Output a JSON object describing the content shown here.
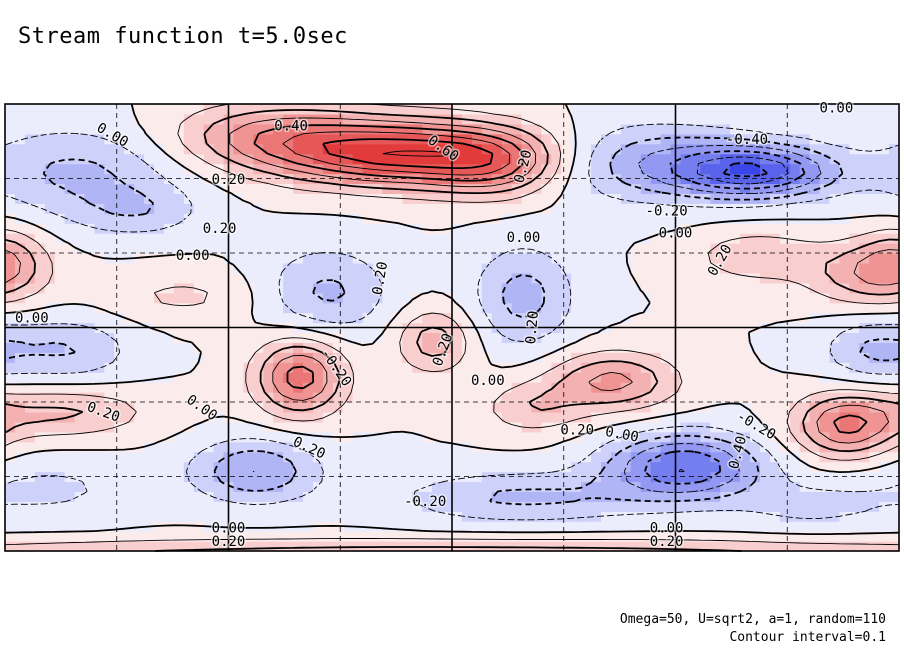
{
  "chart_data": {
    "type": "contour",
    "title": "Stream function t=5.0sec",
    "captions": [
      "Omega=50, U=sqrt2, a=1, random=110",
      "Contour interval=0.1"
    ],
    "contour_interval": 0.1,
    "grid": true,
    "colors": {
      "positive": "#e23b3b",
      "negative": "#3a46e8",
      "zero": "#ffffff"
    },
    "features": [
      {
        "x": 0.45,
        "y": 0.89,
        "amp": 0.65,
        "sx": 0.1,
        "sy": 0.05
      },
      {
        "x": 0.3,
        "y": 0.93,
        "amp": 0.3,
        "sx": 0.08,
        "sy": 0.05
      },
      {
        "x": 0.55,
        "y": 0.86,
        "amp": 0.25,
        "sx": 0.05,
        "sy": 0.05
      },
      {
        "x": 0.84,
        "y": 0.85,
        "amp": -0.55,
        "sx": 0.06,
        "sy": 0.04
      },
      {
        "x": 0.72,
        "y": 0.87,
        "amp": -0.28,
        "sx": 0.08,
        "sy": 0.06
      },
      {
        "x": 0.08,
        "y": 0.85,
        "amp": -0.22,
        "sx": 0.08,
        "sy": 0.07
      },
      {
        "x": 0.15,
        "y": 0.76,
        "amp": -0.15,
        "sx": 0.05,
        "sy": 0.04
      },
      {
        "x": 0.0,
        "y": 0.66,
        "amp": 0.18,
        "sx": 0.03,
        "sy": 0.05
      },
      {
        "x": 0.97,
        "y": 0.62,
        "amp": 0.28,
        "sx": 0.05,
        "sy": 0.05
      },
      {
        "x": 0.84,
        "y": 0.66,
        "amp": 0.18,
        "sx": 0.05,
        "sy": 0.04
      },
      {
        "x": 0.2,
        "y": 0.57,
        "amp": 0.12,
        "sx": 0.06,
        "sy": 0.04
      },
      {
        "x": 0.36,
        "y": 0.58,
        "amp": -0.22,
        "sx": 0.05,
        "sy": 0.07
      },
      {
        "x": 0.58,
        "y": 0.57,
        "amp": -0.24,
        "sx": 0.04,
        "sy": 0.08
      },
      {
        "x": 0.07,
        "y": 0.45,
        "amp": -0.2,
        "sx": 0.05,
        "sy": 0.05
      },
      {
        "x": 0.97,
        "y": 0.45,
        "amp": -0.2,
        "sx": 0.04,
        "sy": 0.05
      },
      {
        "x": 0.33,
        "y": 0.39,
        "amp": 0.45,
        "sx": 0.035,
        "sy": 0.06
      },
      {
        "x": 0.48,
        "y": 0.47,
        "amp": 0.26,
        "sx": 0.03,
        "sy": 0.05
      },
      {
        "x": 0.68,
        "y": 0.38,
        "amp": 0.33,
        "sx": 0.05,
        "sy": 0.045
      },
      {
        "x": 0.59,
        "y": 0.32,
        "amp": 0.18,
        "sx": 0.04,
        "sy": 0.04
      },
      {
        "x": 0.94,
        "y": 0.28,
        "amp": 0.4,
        "sx": 0.04,
        "sy": 0.05
      },
      {
        "x": 0.06,
        "y": 0.31,
        "amp": 0.22,
        "sx": 0.07,
        "sy": 0.04
      },
      {
        "x": 0.28,
        "y": 0.18,
        "amp": -0.3,
        "sx": 0.05,
        "sy": 0.05
      },
      {
        "x": 0.76,
        "y": 0.19,
        "amp": -0.5,
        "sx": 0.06,
        "sy": 0.05
      },
      {
        "x": 0.58,
        "y": 0.12,
        "amp": -0.22,
        "sx": 0.1,
        "sy": 0.04
      },
      {
        "x": 0.05,
        "y": 0.14,
        "amp": -0.12,
        "sx": 0.07,
        "sy": 0.05
      },
      {
        "x": 0.9,
        "y": 0.1,
        "amp": -0.12,
        "sx": 0.06,
        "sy": 0.04
      },
      {
        "x": 0.5,
        "y": 0.0,
        "amp": 0.25,
        "sx": 0.5,
        "sy": 0.02
      }
    ],
    "contour_labels": [
      {
        "text": "0.40",
        "x": 0.32,
        "y": 0.95,
        "angle": 0
      },
      {
        "text": "0.60",
        "x": 0.49,
        "y": 0.9,
        "angle": 35
      },
      {
        "text": "0.00",
        "x": 0.93,
        "y": 0.99,
        "angle": 0
      },
      {
        "text": "0.00",
        "x": 0.12,
        "y": 0.93,
        "angle": 30
      },
      {
        "text": "0.20",
        "x": 0.58,
        "y": 0.86,
        "angle": -75
      },
      {
        "text": "-0.40",
        "x": 0.83,
        "y": 0.92,
        "angle": 0
      },
      {
        "text": "0.20",
        "x": 0.25,
        "y": 0.83,
        "angle": 0
      },
      {
        "text": "-0.20",
        "x": 0.74,
        "y": 0.76,
        "angle": 0
      },
      {
        "text": "0.20",
        "x": 0.24,
        "y": 0.72,
        "angle": 0
      },
      {
        "text": "0.00",
        "x": 0.58,
        "y": 0.7,
        "angle": 0
      },
      {
        "text": "0.00",
        "x": 0.75,
        "y": 0.71,
        "angle": 0
      },
      {
        "text": "0.00",
        "x": 0.21,
        "y": 0.66,
        "angle": 0
      },
      {
        "text": "0.20",
        "x": 0.8,
        "y": 0.65,
        "angle": -60
      },
      {
        "text": "0.20",
        "x": 0.42,
        "y": 0.61,
        "angle": -80
      },
      {
        "text": "0.20",
        "x": 0.59,
        "y": 0.5,
        "angle": -85
      },
      {
        "text": "0.00",
        "x": 0.03,
        "y": 0.52,
        "angle": 0
      },
      {
        "text": "0.20",
        "x": 0.49,
        "y": 0.45,
        "angle": -70
      },
      {
        "text": "-0.20",
        "x": 0.37,
        "y": 0.41,
        "angle": 55
      },
      {
        "text": "0.00",
        "x": 0.54,
        "y": 0.38,
        "angle": 0
      },
      {
        "text": "0.20",
        "x": 0.11,
        "y": 0.31,
        "angle": 20
      },
      {
        "text": "0.00",
        "x": 0.22,
        "y": 0.32,
        "angle": 35
      },
      {
        "text": "-0.20",
        "x": 0.84,
        "y": 0.28,
        "angle": 30
      },
      {
        "text": "0.20",
        "x": 0.64,
        "y": 0.27,
        "angle": 0
      },
      {
        "text": "0.00",
        "x": 0.69,
        "y": 0.26,
        "angle": 10
      },
      {
        "text": "0.20",
        "x": 0.34,
        "y": 0.23,
        "angle": 25
      },
      {
        "text": "0.40",
        "x": 0.82,
        "y": 0.22,
        "angle": -75
      },
      {
        "text": "-0.20",
        "x": 0.47,
        "y": 0.11,
        "angle": 0
      },
      {
        "text": "0.00",
        "x": 0.25,
        "y": 0.05,
        "angle": 0
      },
      {
        "text": "0.00",
        "x": 0.74,
        "y": 0.05,
        "angle": 0
      },
      {
        "text": "0.20",
        "x": 0.25,
        "y": 0.02,
        "angle": 0
      },
      {
        "text": "0.20",
        "x": 0.74,
        "y": 0.02,
        "angle": 0
      }
    ]
  }
}
